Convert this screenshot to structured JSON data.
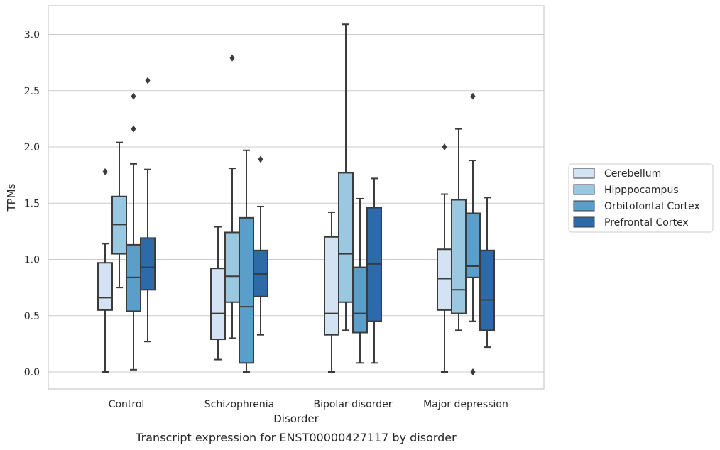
{
  "chart_data": {
    "type": "box",
    "caption": "Transcript expression for ENST00000427117 by disorder",
    "xlabel": "Disorder",
    "ylabel": "TPMs",
    "ylim": [
      -0.15,
      3.25
    ],
    "yticks": [
      0.0,
      0.5,
      1.0,
      1.5,
      2.0,
      2.5,
      3.0
    ],
    "ytick_labels": [
      "0.0",
      "0.5",
      "1.0",
      "1.5",
      "2.0",
      "2.5",
      "3.0"
    ],
    "grid": "horizontal",
    "legend_position": "right",
    "categories": [
      "Control",
      "Schizophrenia",
      "Bipolar disorder",
      "Major depression"
    ],
    "series": [
      {
        "name": "Cerebellum",
        "color": "#d3e3f3",
        "boxes": [
          {
            "q1": 0.55,
            "median": 0.66,
            "q3": 0.97,
            "whisker_low": 0.0,
            "whisker_high": 1.14,
            "outliers": [
              1.78
            ]
          },
          {
            "q1": 0.29,
            "median": 0.52,
            "q3": 0.92,
            "whisker_low": 0.11,
            "whisker_high": 1.29,
            "outliers": []
          },
          {
            "q1": 0.33,
            "median": 0.52,
            "q3": 1.2,
            "whisker_low": 0.0,
            "whisker_high": 1.42,
            "outliers": []
          },
          {
            "q1": 0.55,
            "median": 0.83,
            "q3": 1.09,
            "whisker_low": 0.0,
            "whisker_high": 1.58,
            "outliers": [
              2.0
            ]
          }
        ]
      },
      {
        "name": "Hipppocampus",
        "color": "#9ac8e0",
        "boxes": [
          {
            "q1": 1.05,
            "median": 1.31,
            "q3": 1.56,
            "whisker_low": 0.75,
            "whisker_high": 2.04,
            "outliers": []
          },
          {
            "q1": 0.62,
            "median": 0.85,
            "q3": 1.24,
            "whisker_low": 0.3,
            "whisker_high": 1.81,
            "outliers": [
              2.79
            ]
          },
          {
            "q1": 0.62,
            "median": 1.05,
            "q3": 1.77,
            "whisker_low": 0.37,
            "whisker_high": 3.09,
            "outliers": []
          },
          {
            "q1": 0.52,
            "median": 0.73,
            "q3": 1.53,
            "whisker_low": 0.37,
            "whisker_high": 2.16,
            "outliers": []
          }
        ]
      },
      {
        "name": "Orbitofontal Cortex",
        "color": "#5a9ec9",
        "boxes": [
          {
            "q1": 0.54,
            "median": 0.84,
            "q3": 1.13,
            "whisker_low": 0.02,
            "whisker_high": 1.85,
            "outliers": [
              2.16,
              2.45
            ]
          },
          {
            "q1": 0.08,
            "median": 0.58,
            "q3": 1.37,
            "whisker_low": 0.0,
            "whisker_high": 1.97,
            "outliers": []
          },
          {
            "q1": 0.35,
            "median": 0.52,
            "q3": 0.93,
            "whisker_low": 0.08,
            "whisker_high": 1.54,
            "outliers": []
          },
          {
            "q1": 0.84,
            "median": 0.94,
            "q3": 1.41,
            "whisker_low": 0.45,
            "whisker_high": 1.88,
            "outliers": [
              0.0,
              2.45
            ]
          }
        ]
      },
      {
        "name": "Prefrontal Cortex",
        "color": "#2c6aa8",
        "boxes": [
          {
            "q1": 0.73,
            "median": 0.93,
            "q3": 1.19,
            "whisker_low": 0.27,
            "whisker_high": 1.8,
            "outliers": [
              2.59
            ]
          },
          {
            "q1": 0.67,
            "median": 0.87,
            "q3": 1.08,
            "whisker_low": 0.33,
            "whisker_high": 1.47,
            "outliers": [
              1.89
            ]
          },
          {
            "q1": 0.45,
            "median": 0.96,
            "q3": 1.46,
            "whisker_low": 0.08,
            "whisker_high": 1.72,
            "outliers": []
          },
          {
            "q1": 0.37,
            "median": 0.64,
            "q3": 1.08,
            "whisker_low": 0.22,
            "whisker_high": 1.55,
            "outliers": []
          }
        ]
      }
    ]
  }
}
